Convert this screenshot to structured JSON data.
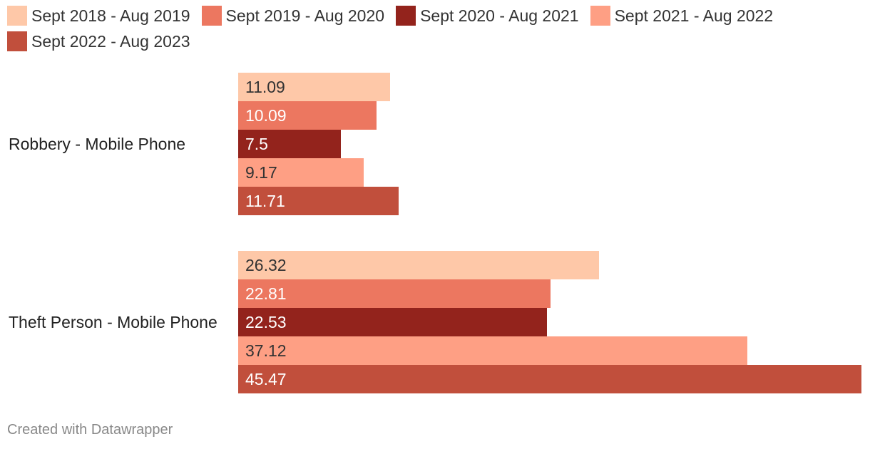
{
  "chart_data": {
    "type": "bar",
    "orientation": "horizontal",
    "categories": [
      "Robbery - Mobile Phone",
      "Theft Person - Mobile Phone"
    ],
    "series": [
      {
        "name": "Sept 2018 - Aug 2019",
        "color": "#fec8a8",
        "label_color": "#333333",
        "values": [
          11.09,
          26.32
        ]
      },
      {
        "name": "Sept 2019 - Aug 2020",
        "color": "#ec7760",
        "label_color": "#ffffff",
        "values": [
          10.09,
          22.81
        ]
      },
      {
        "name": "Sept 2020 - Aug 2021",
        "color": "#93231c",
        "label_color": "#ffffff",
        "values": [
          7.5,
          22.53
        ]
      },
      {
        "name": "Sept 2021 - Aug 2022",
        "color": "#fe9f84",
        "label_color": "#333333",
        "values": [
          9.17,
          37.12
        ]
      },
      {
        "name": "Sept 2022 - Aug 2023",
        "color": "#c14f3c",
        "label_color": "#ffffff",
        "values": [
          11.71,
          45.47
        ]
      }
    ],
    "value_labels": [
      [
        "11.09",
        "10.09",
        "7.5",
        "9.17",
        "11.71"
      ],
      [
        "26.32",
        "22.81",
        "22.53",
        "37.12",
        "45.47"
      ]
    ],
    "xlim": [
      0,
      45.47
    ],
    "title": "",
    "xlabel": "",
    "ylabel": "",
    "grid": false,
    "legend_position": "top"
  },
  "footer": {
    "credit": "Created with Datawrapper"
  }
}
